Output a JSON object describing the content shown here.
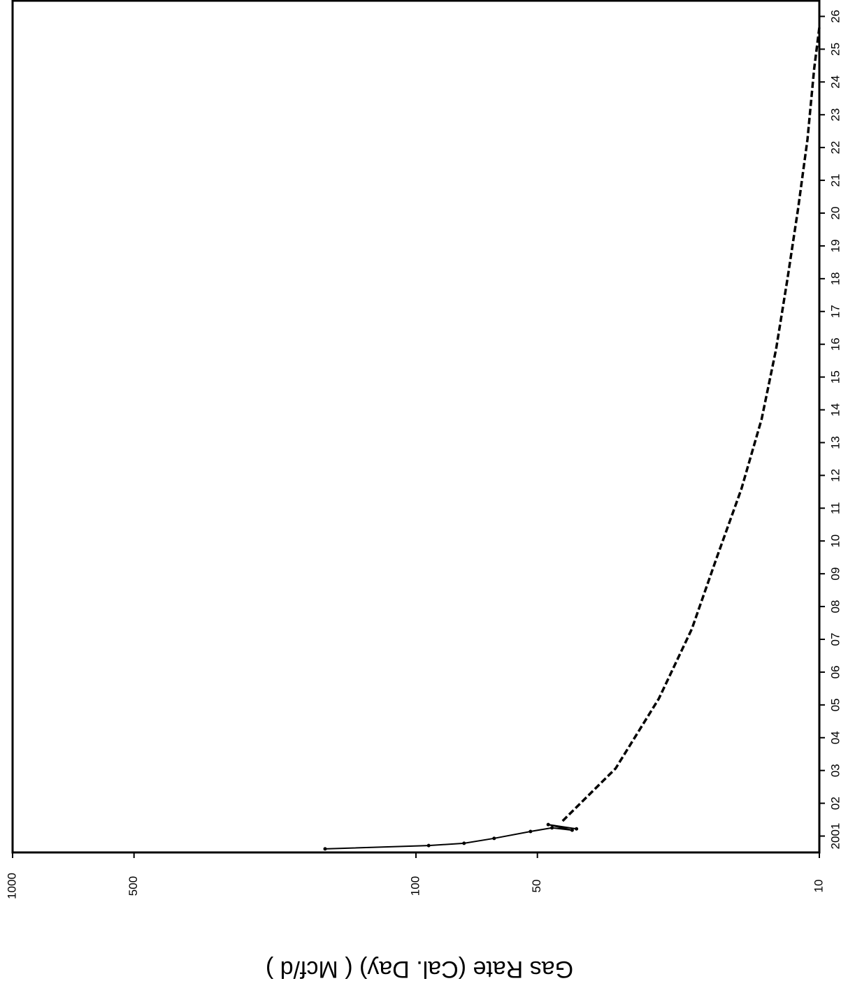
{
  "chart_data": {
    "type": "line",
    "y_label": "Gas Rate (Cal. Day) ( Mcf/d )",
    "ylim": [
      10,
      1000
    ],
    "log_y": true,
    "yticks": [
      1000,
      500,
      100,
      50,
      10
    ],
    "xlim": [
      2000.5,
      2026.5
    ],
    "xticks": [
      {
        "value": 2001,
        "label": "2001"
      },
      {
        "value": 2002,
        "label": "02"
      },
      {
        "value": 2003,
        "label": "03"
      },
      {
        "value": 2004,
        "label": "04"
      },
      {
        "value": 2005,
        "label": "05"
      },
      {
        "value": 2006,
        "label": "06"
      },
      {
        "value": 2007,
        "label": "07"
      },
      {
        "value": 2008,
        "label": "08"
      },
      {
        "value": 2009,
        "label": "09"
      },
      {
        "value": 2010,
        "label": "10"
      },
      {
        "value": 2011,
        "label": "11"
      },
      {
        "value": 2012,
        "label": "12"
      },
      {
        "value": 2013,
        "label": "13"
      },
      {
        "value": 2014,
        "label": "14"
      },
      {
        "value": 2015,
        "label": "15"
      },
      {
        "value": 2016,
        "label": "16"
      },
      {
        "value": 2017,
        "label": "17"
      },
      {
        "value": 2018,
        "label": "18"
      },
      {
        "value": 2019,
        "label": "19"
      },
      {
        "value": 2020,
        "label": "20"
      },
      {
        "value": 2021,
        "label": "21"
      },
      {
        "value": 2022,
        "label": "22"
      },
      {
        "value": 2023,
        "label": "23"
      },
      {
        "value": 2024,
        "label": "24"
      },
      {
        "value": 2025,
        "label": "25"
      },
      {
        "value": 2026,
        "label": "26"
      }
    ],
    "series": [
      {
        "color": "#000000",
        "dash": false,
        "markers": true,
        "x": [
          2000.61,
          2000.71,
          2000.78,
          2000.93,
          2001.14,
          2001.25,
          2001.18,
          2001.35,
          2001.22
        ],
        "values": [
          168,
          93,
          76,
          64,
          52,
          46,
          41,
          47,
          40
        ]
      },
      {
        "color": "#000000",
        "dash": true,
        "markers": false,
        "x": [
          2001.46,
          2003.06,
          2005.19,
          2007.32,
          2009.46,
          2011.59,
          2013.72,
          2015.85,
          2017.98,
          2020.1,
          2022.25,
          2024.4,
          2025.66
        ],
        "values": [
          43.3,
          32,
          25,
          20.7,
          18,
          15.6,
          13.9,
          12.8,
          12.0,
          11.3,
          10.7,
          10.3,
          10
        ]
      }
    ]
  }
}
